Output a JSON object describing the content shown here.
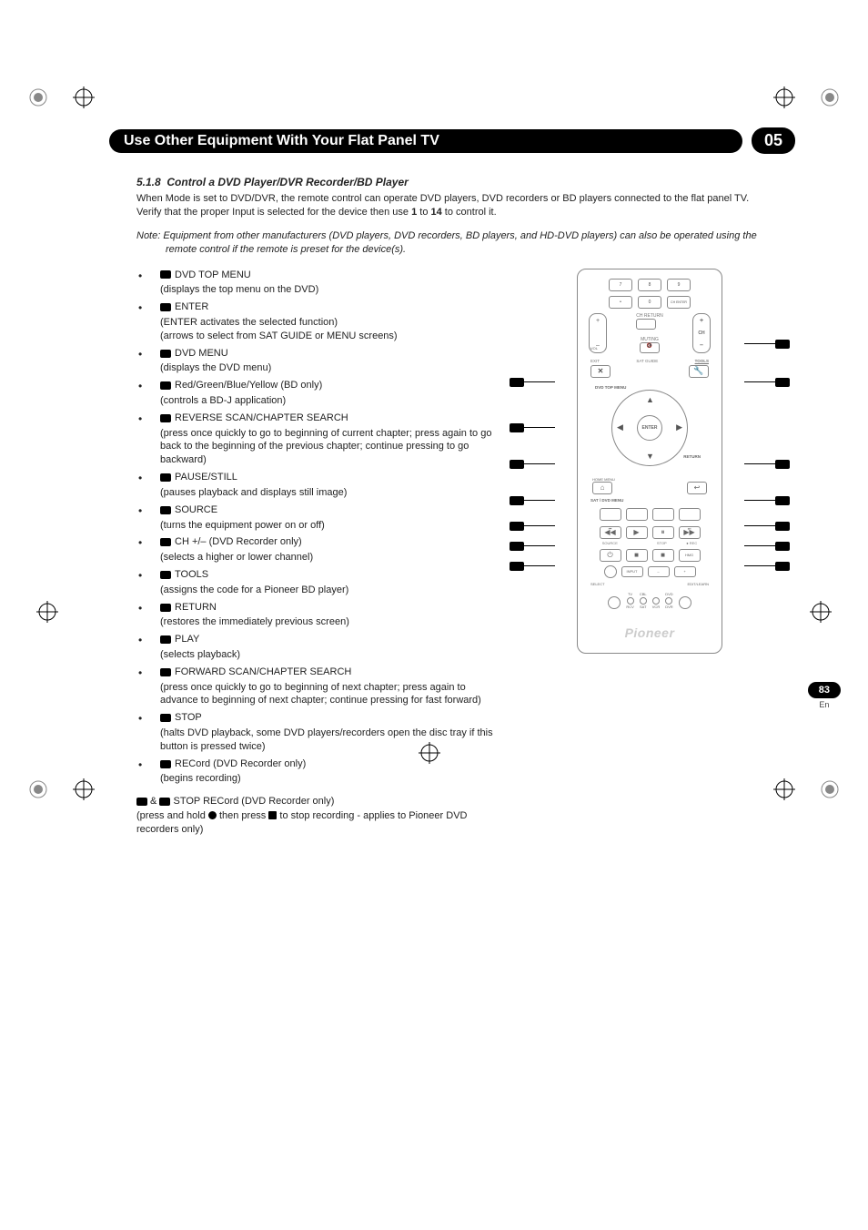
{
  "header": {
    "title": "Use Other Equipment With Your Flat Panel TV",
    "chapter": "05"
  },
  "section": {
    "number": "5.1.8",
    "title": "Control a DVD Player/DVR Recorder/BD Player",
    "intro": "When Mode is set to DVD/DVR, the remote control can operate DVD players, DVD recorders or BD players connected to the flat panel TV. Verify that the proper Input is selected for the device then use 1 to 14 to control it.",
    "note_label": "Note:",
    "note": "Equipment from other manufacturers (DVD players, DVD recorders, BD players, and HD-DVD players) can also be operated using the remote control if the remote is preset for the device(s)."
  },
  "commands": [
    {
      "name": "DVD TOP MENU",
      "desc": "(displays the top menu on the DVD)"
    },
    {
      "name": "ENTER",
      "desc": "(ENTER activates the selected function)",
      "desc2": "(arrows to select from SAT GUIDE or MENU screens)"
    },
    {
      "name": "DVD MENU",
      "desc": "(displays the DVD menu)"
    },
    {
      "name": "Red/Green/Blue/Yellow (BD only)",
      "desc": "(controls a BD-J application)"
    },
    {
      "name": "REVERSE SCAN/CHAPTER SEARCH",
      "desc": "(press once quickly to go to beginning of current chapter; press again to go back to the beginning of the previous chapter; continue pressing to go backward)"
    },
    {
      "name": "PAUSE/STILL",
      "desc": "(pauses playback and displays still image)"
    },
    {
      "name": "SOURCE",
      "desc": "(turns the equipment power on or off)"
    },
    {
      "name": "CH +/– (DVD Recorder only)",
      "desc": "(selects a higher or lower channel)"
    },
    {
      "name": "TOOLS",
      "desc": "(assigns the code for a Pioneer BD player)"
    },
    {
      "name": "RETURN",
      "desc": "(restores the immediately previous screen)"
    },
    {
      "name": "PLAY",
      "desc": "(selects playback)"
    },
    {
      "name": "FORWARD SCAN/CHAPTER SEARCH",
      "desc": "(press once quickly to go to beginning of next chapter; press again to advance to beginning of next chapter; continue pressing for fast forward)"
    },
    {
      "name": "STOP",
      "desc": "(halts DVD playback, some DVD players/recorders open the disc tray if this button is pressed twice)"
    },
    {
      "name": "RECord (DVD Recorder only)",
      "desc": "(begins recording)"
    }
  ],
  "footer_combo": {
    "title": " STOP RECord (DVD Recorder only)",
    "desc": "(press and hold ● then press ■ to stop recording - applies to Pioneer DVD recorders only)"
  },
  "remote": {
    "keypad": [
      "7",
      "8",
      "9",
      "●",
      "0",
      "CH ENTER"
    ],
    "vol": "VOL",
    "ch": "CH",
    "ch_return": "CH RETURN",
    "muting": "MUTING",
    "exit": "EXIT",
    "sat_guide": "SAT GUIDE",
    "tools": "TOOLS",
    "dvd_top": "DVD TOP MENU",
    "enter": "ENTER",
    "return": "RETURN",
    "home": "HOME MENU",
    "sat_dvd": "SAT / DVD MENU",
    "source": "SOURCE",
    "stop": "STOP",
    "rec": "REC",
    "hmg": "HMG",
    "input": "INPUT",
    "select": "SELECT",
    "edit": "EDIT/LEARN",
    "modes": [
      "TV",
      "CBL",
      "DVD"
    ],
    "modes2": [
      "RCV",
      "SAT",
      "VCR",
      "DVR"
    ],
    "brand": "Pioneer"
  },
  "page": {
    "number": "83",
    "lang": "En"
  },
  "colors": {
    "black": "#000000",
    "text": "#222222",
    "remote_stroke": "#888888",
    "brand_gray": "#cccccc"
  }
}
